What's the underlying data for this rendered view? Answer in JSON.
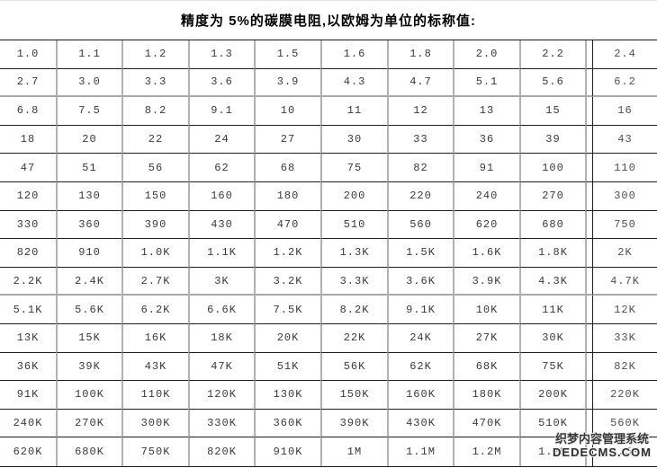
{
  "title": "精度为 5%的碳膜电阻,以欧姆为单位的标称值:",
  "table": {
    "unit": "ohms",
    "rows": [
      [
        "1.0",
        "1.1",
        "1.2",
        "1.3",
        "1.5",
        "1.6",
        "1.8",
        "2.0",
        "2.2",
        "2.4"
      ],
      [
        "2.7",
        "3.0",
        "3.3",
        "3.6",
        "3.9",
        "4.3",
        "4.7",
        "5.1",
        "5.6",
        "6.2"
      ],
      [
        "6.8",
        "7.5",
        "8.2",
        "9.1",
        "10",
        "11",
        "12",
        "13",
        "15",
        "16"
      ],
      [
        "18",
        "20",
        "22",
        "24",
        "27",
        "30",
        "33",
        "36",
        "39",
        "43"
      ],
      [
        "47",
        "51",
        "56",
        "62",
        "68",
        "75",
        "82",
        "91",
        "100",
        "110"
      ],
      [
        "120",
        "130",
        "150",
        "160",
        "180",
        "200",
        "220",
        "240",
        "270",
        "300"
      ],
      [
        "330",
        "360",
        "390",
        "430",
        "470",
        "510",
        "560",
        "620",
        "680",
        "750"
      ],
      [
        "820",
        "910",
        "1.0K",
        "1.1K",
        "1.2K",
        "1.3K",
        "1.5K",
        "1.6K",
        "1.8K",
        "2K"
      ],
      [
        "2.2K",
        "2.4K",
        "2.7K",
        "3K",
        "3.2K",
        "3.3K",
        "3.6K",
        "3.9K",
        "4.3K",
        "4.7K"
      ],
      [
        "5.1K",
        "5.6K",
        "6.2K",
        "6.6K",
        "7.5K",
        "8.2K",
        "9.1K",
        "10K",
        "11K",
        "12K"
      ],
      [
        "13K",
        "15K",
        "16K",
        "18K",
        "20K",
        "22K",
        "24K",
        "27K",
        "30K",
        "33K"
      ],
      [
        "36K",
        "39K",
        "43K",
        "47K",
        "51K",
        "56K",
        "62K",
        "68K",
        "75K",
        "82K"
      ],
      [
        "91K",
        "100K",
        "110K",
        "120K",
        "130K",
        "150K",
        "160K",
        "180K",
        "200K",
        "220K"
      ],
      [
        "240K",
        "270K",
        "300K",
        "330K",
        "360K",
        "390K",
        "430K",
        "470K",
        "510K",
        "560K"
      ],
      [
        "620K",
        "680K",
        "750K",
        "820K",
        "910K",
        "1M",
        "1.1M",
        "1.2M",
        "1.3M",
        "1.5M"
      ]
    ]
  },
  "watermark": {
    "line1": "织梦内容管理系统",
    "line2": "DEDECMS.COM"
  },
  "colors": {
    "horizontal_line": "#1f1f1f",
    "vertical_line": "#b2b2b2",
    "gray_row_line": "#a8a8a8",
    "cell_text": "#3a3a3a",
    "title_text": "#000000",
    "watermark_text": "#383838"
  }
}
